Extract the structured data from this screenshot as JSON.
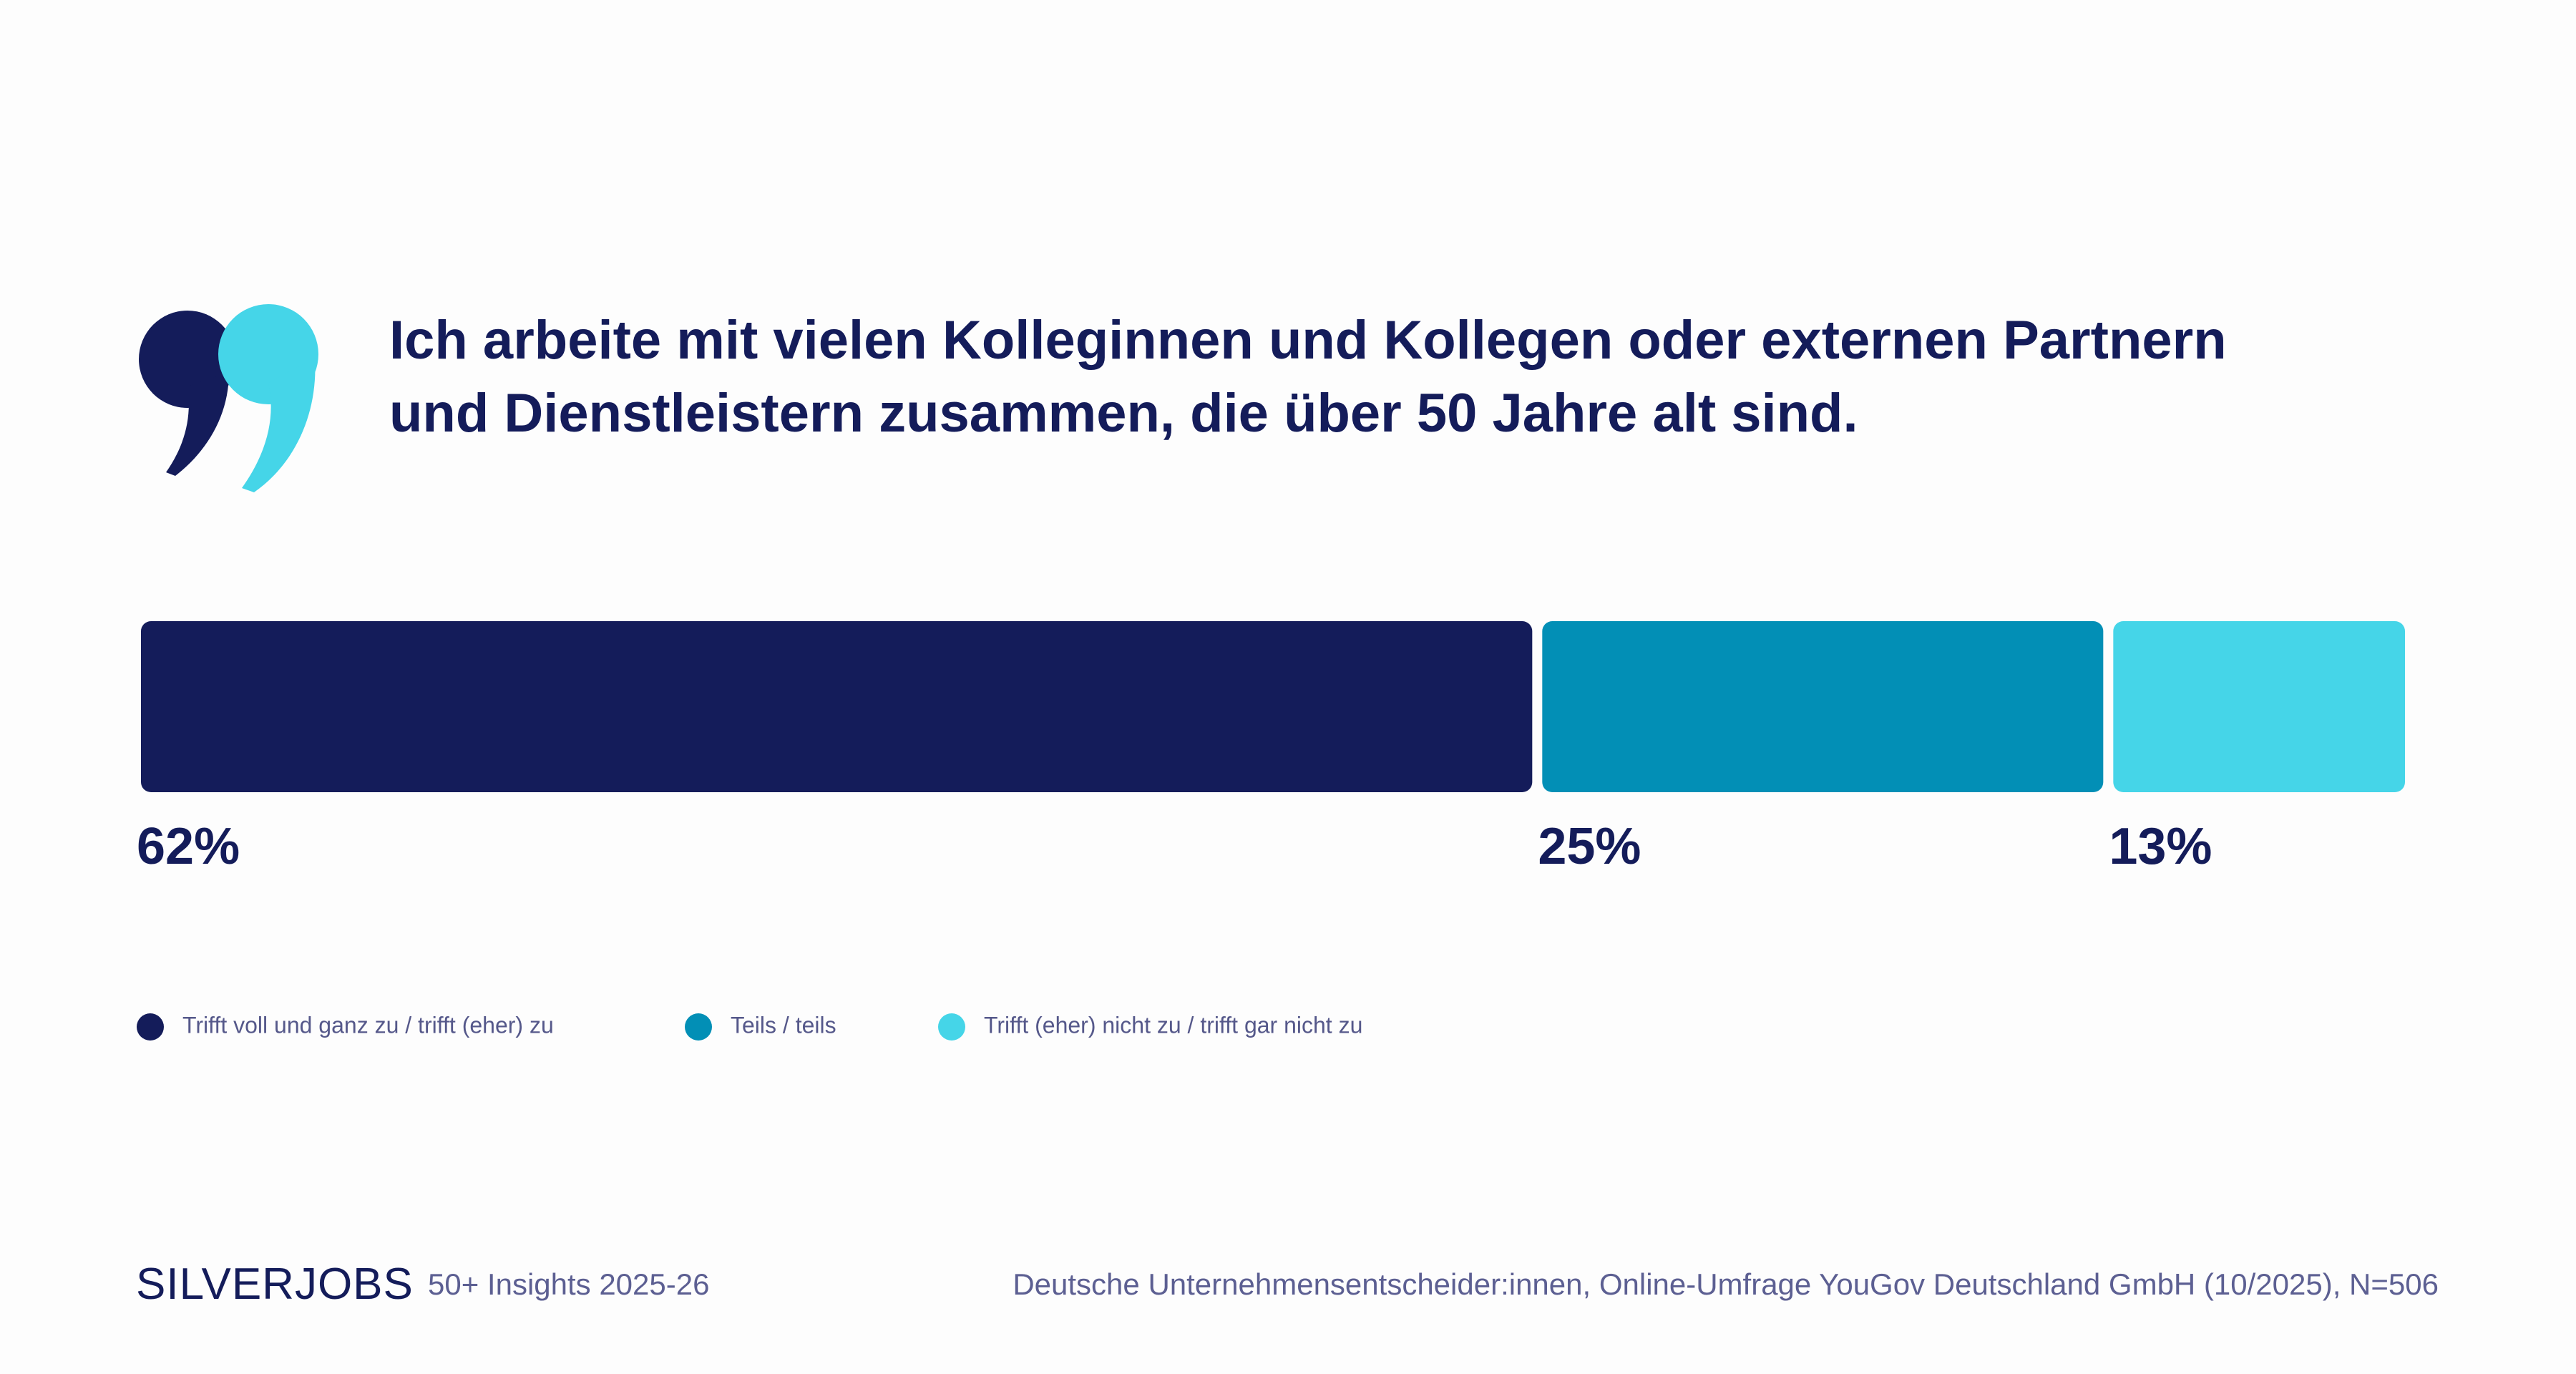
{
  "chart_data": {
    "type": "stacked-bar",
    "title": "Ich arbeite mit vielen Kolleginnen und Kollegen oder externen Partnern und Dienstleistern zusammen, die über 50 Jahre alt sind.",
    "series": [
      {
        "name": "Trifft voll und ganz zu / trifft (eher) zu",
        "color": "#141c5a",
        "values": [
          62
        ],
        "value_labels": [
          "62%"
        ]
      },
      {
        "name": "Teils / teils",
        "color": "#028fb6",
        "values": [
          25
        ],
        "value_labels": [
          "25%"
        ]
      },
      {
        "name": "Trifft (eher) nicht zu / trifft gar nicht zu",
        "color": "#45d5e8",
        "values": [
          13
        ],
        "value_labels": [
          "13%"
        ]
      }
    ]
  },
  "footer": {
    "brand": "SILVERJOBS",
    "edition": "50+ Insights 2025-26",
    "source": "Deutsche Unternehmensentscheider:innen, Online-Umfrage YouGov Deutschland GmbH (10/2025), N=506"
  }
}
